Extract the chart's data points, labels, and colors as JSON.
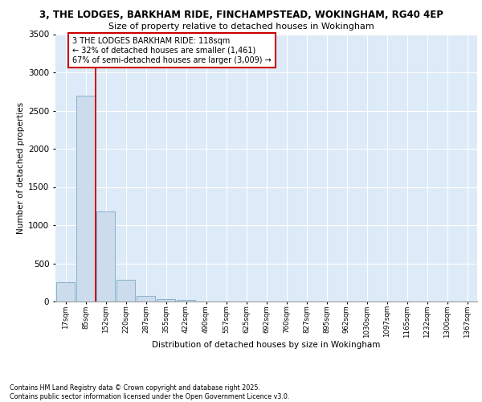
{
  "title_line1": "3, THE LODGES, BARKHAM RIDE, FINCHAMPSTEAD, WOKINGHAM, RG40 4EP",
  "title_line2": "Size of property relative to detached houses in Wokingham",
  "xlabel": "Distribution of detached houses by size in Wokingham",
  "ylabel": "Number of detached properties",
  "categories": [
    "17sqm",
    "85sqm",
    "152sqm",
    "220sqm",
    "287sqm",
    "355sqm",
    "422sqm",
    "490sqm",
    "557sqm",
    "625sqm",
    "692sqm",
    "760sqm",
    "827sqm",
    "895sqm",
    "962sqm",
    "1030sqm",
    "1097sqm",
    "1165sqm",
    "1232sqm",
    "1300sqm",
    "1367sqm"
  ],
  "values": [
    255,
    2690,
    1175,
    280,
    75,
    35,
    25,
    0,
    0,
    0,
    0,
    0,
    0,
    0,
    0,
    0,
    0,
    0,
    0,
    0,
    0
  ],
  "bar_color": "#ccdcec",
  "bar_edge_color": "#7aaac8",
  "red_line_x": 1.5,
  "annotation_text": "3 THE LODGES BARKHAM RIDE: 118sqm\n← 32% of detached houses are smaller (1,461)\n67% of semi-detached houses are larger (3,009) →",
  "annotation_box_color": "#ffffff",
  "annotation_box_edge": "#cc0000",
  "ylim": [
    0,
    3500
  ],
  "yticks": [
    0,
    500,
    1000,
    1500,
    2000,
    2500,
    3000,
    3500
  ],
  "background_color": "#ddeaf7",
  "grid_color": "#ffffff",
  "footer_line1": "Contains HM Land Registry data © Crown copyright and database right 2025.",
  "footer_line2": "Contains public sector information licensed under the Open Government Licence v3.0."
}
